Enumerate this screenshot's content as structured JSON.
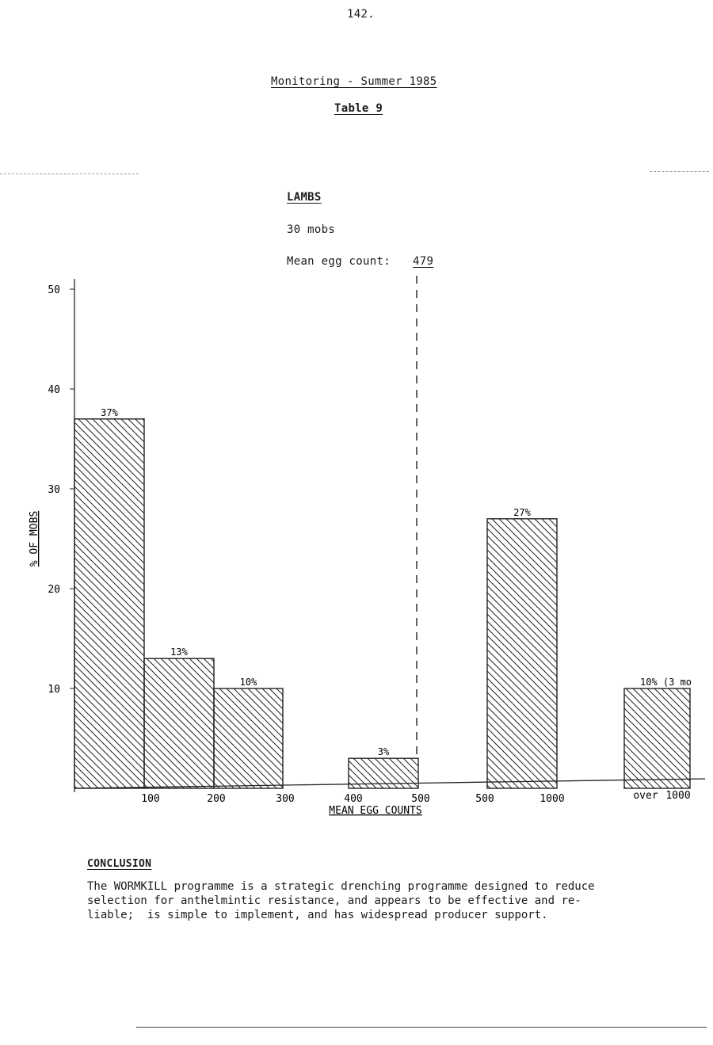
{
  "page_number": "142.",
  "header": {
    "title": "Monitoring - Summer 1985",
    "table_label": "Table 9"
  },
  "section": {
    "name": "LAMBS",
    "mobs": "30 mobs",
    "mean_label": "Mean egg count:",
    "mean_value": "479"
  },
  "chart_data": {
    "type": "bar",
    "title": "",
    "xlabel": "MEAN EGG COUNTS",
    "ylabel": "% OF MOBS",
    "ylim": [
      0,
      50
    ],
    "yticks": [
      10,
      20,
      30,
      40,
      50
    ],
    "grid": false,
    "legend": "none",
    "hatch": "diagonal",
    "bars": [
      {
        "range": [
          0,
          100
        ],
        "value": 37,
        "label": "37%"
      },
      {
        "range": [
          100,
          200
        ],
        "value": 13,
        "label": "13%"
      },
      {
        "range": [
          200,
          300
        ],
        "value": 10,
        "label": "10%"
      },
      {
        "range": [
          400,
          500
        ],
        "value": 3,
        "label": "3%"
      },
      {
        "range": [
          500,
          1000
        ],
        "value": 27,
        "label": "27%"
      },
      {
        "range": [
          "over 1000"
        ],
        "value": 10,
        "label": "10% (3 mo"
      }
    ],
    "xtick_labels": [
      "100",
      "200",
      "300",
      "400",
      "500",
      "500",
      "1000",
      "over",
      "1000"
    ],
    "mean_line": {
      "value": 479
    }
  },
  "conclusion": {
    "heading": "CONCLUSION",
    "text": "The WORMKILL programme is a strategic drenching programme designed to reduce\nselection for anthelmintic resistance, and appears to be effective and re-\nliable;  is simple to implement, and has widespread producer support."
  }
}
